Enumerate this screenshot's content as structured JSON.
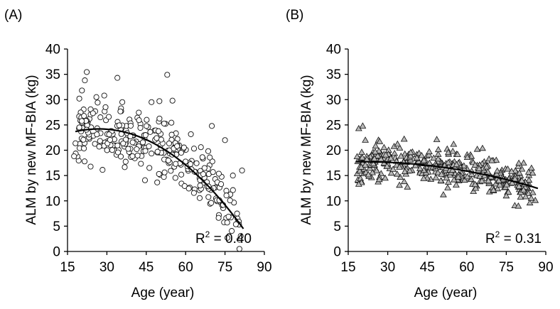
{
  "chart_data": [
    {
      "type": "scatter",
      "panel_label": "(A)",
      "marker": "circle",
      "xlabel": "Age (year)",
      "ylabel": "ALM by new MF-BIA (kg)",
      "xlim": [
        15,
        90
      ],
      "ylim": [
        0,
        40
      ],
      "xticks": [
        "15",
        "30",
        "45",
        "60",
        "75",
        "90"
      ],
      "yticks": [
        "0",
        "5",
        "10",
        "15",
        "20",
        "25",
        "30",
        "35",
        "40"
      ],
      "annotation": {
        "r_label": "R",
        "r_exp": "2",
        "r_value": " = 0.40"
      },
      "trend": {
        "type": "quadratic",
        "x_range": [
          18,
          82
        ],
        "coef": [
          19.5,
          0.35,
          -0.0065
        ]
      },
      "point_gen": {
        "n": 300,
        "x_range": [
          18,
          81
        ],
        "resid_sd": 3.2,
        "seed": 11
      },
      "points": [
        [
          17.5,
          18.8
        ],
        [
          20.5,
          31.8
        ],
        [
          21.5,
          17.8
        ],
        [
          34.0,
          34.3
        ],
        [
          53.0,
          34.9
        ],
        [
          73.5,
          13.3
        ],
        [
          78.0,
          15.0
        ],
        [
          81.5,
          16.0
        ],
        [
          19.5,
          24.5
        ],
        [
          26.0,
          30.5
        ],
        [
          29.0,
          30.8
        ],
        [
          47.0,
          29.5
        ],
        [
          50.0,
          29.7
        ],
        [
          55.0,
          29.8
        ],
        [
          70.0,
          24.8
        ],
        [
          75.0,
          22.0
        ]
      ]
    },
    {
      "type": "scatter",
      "panel_label": "(B)",
      "marker": "triangle",
      "xlabel": "Age (year)",
      "ylabel": "ALM by new MF-BIA (kg)",
      "xlim": [
        15,
        90
      ],
      "ylim": [
        0,
        40
      ],
      "xticks": [
        "15",
        "30",
        "45",
        "60",
        "75",
        "90"
      ],
      "yticks": [
        "0",
        "5",
        "10",
        "15",
        "20",
        "25",
        "30",
        "35",
        "40"
      ],
      "annotation": {
        "r_label": "R",
        "r_exp": "2",
        "r_value": " = 0.31"
      },
      "trend": {
        "type": "quadratic",
        "x_range": [
          18,
          87
        ],
        "coef": [
          17.2,
          0.05,
          -0.0012
        ]
      },
      "point_gen": {
        "n": 380,
        "x_range": [
          18,
          86
        ],
        "resid_sd": 1.8,
        "seed": 29
      },
      "points": [
        [
          19.0,
          24.3
        ],
        [
          20.5,
          24.8
        ],
        [
          21.5,
          22.0
        ],
        [
          19.0,
          13.3
        ],
        [
          85.0,
          15.5
        ],
        [
          86.0,
          10.1
        ],
        [
          84.5,
          10.5
        ],
        [
          80.0,
          15.5
        ],
        [
          55.0,
          21.2
        ],
        [
          64.0,
          20.2
        ],
        [
          66.0,
          20.4
        ],
        [
          75.0,
          11.0
        ]
      ]
    }
  ]
}
